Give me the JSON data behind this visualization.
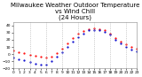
{
  "title": "Milwaukee Weather Outdoor Temperature\nvs Wind Chill\n(24 Hours)",
  "title_fontsize": 5,
  "background_color": "#ffffff",
  "plot_bg_color": "#ffffff",
  "grid_color": "#aaaaaa",
  "temp_color": "#ff0000",
  "windchill_color": "#0000cc",
  "hours": [
    0,
    1,
    2,
    3,
    4,
    5,
    6,
    7,
    8,
    9,
    10,
    11,
    12,
    13,
    14,
    15,
    16,
    17,
    18,
    19,
    20,
    21,
    22,
    23
  ],
  "temp": [
    5,
    3,
    1,
    -1,
    -2,
    -4,
    -5,
    -3,
    2,
    8,
    15,
    22,
    28,
    32,
    35,
    36,
    35,
    33,
    29,
    22,
    18,
    14,
    10,
    8
  ],
  "windchill": [
    -5,
    -7,
    -9,
    -11,
    -13,
    -15,
    -14,
    -10,
    -4,
    3,
    10,
    18,
    24,
    29,
    33,
    34,
    33,
    31,
    27,
    20,
    15,
    10,
    6,
    4
  ],
  "ylim": [
    -20,
    45
  ],
  "ytick_interval": 10,
  "marker_size": 1.2,
  "vgrid_positions": [
    3,
    6,
    9,
    12,
    15,
    18,
    21
  ],
  "tick_fontsize": 3.2
}
